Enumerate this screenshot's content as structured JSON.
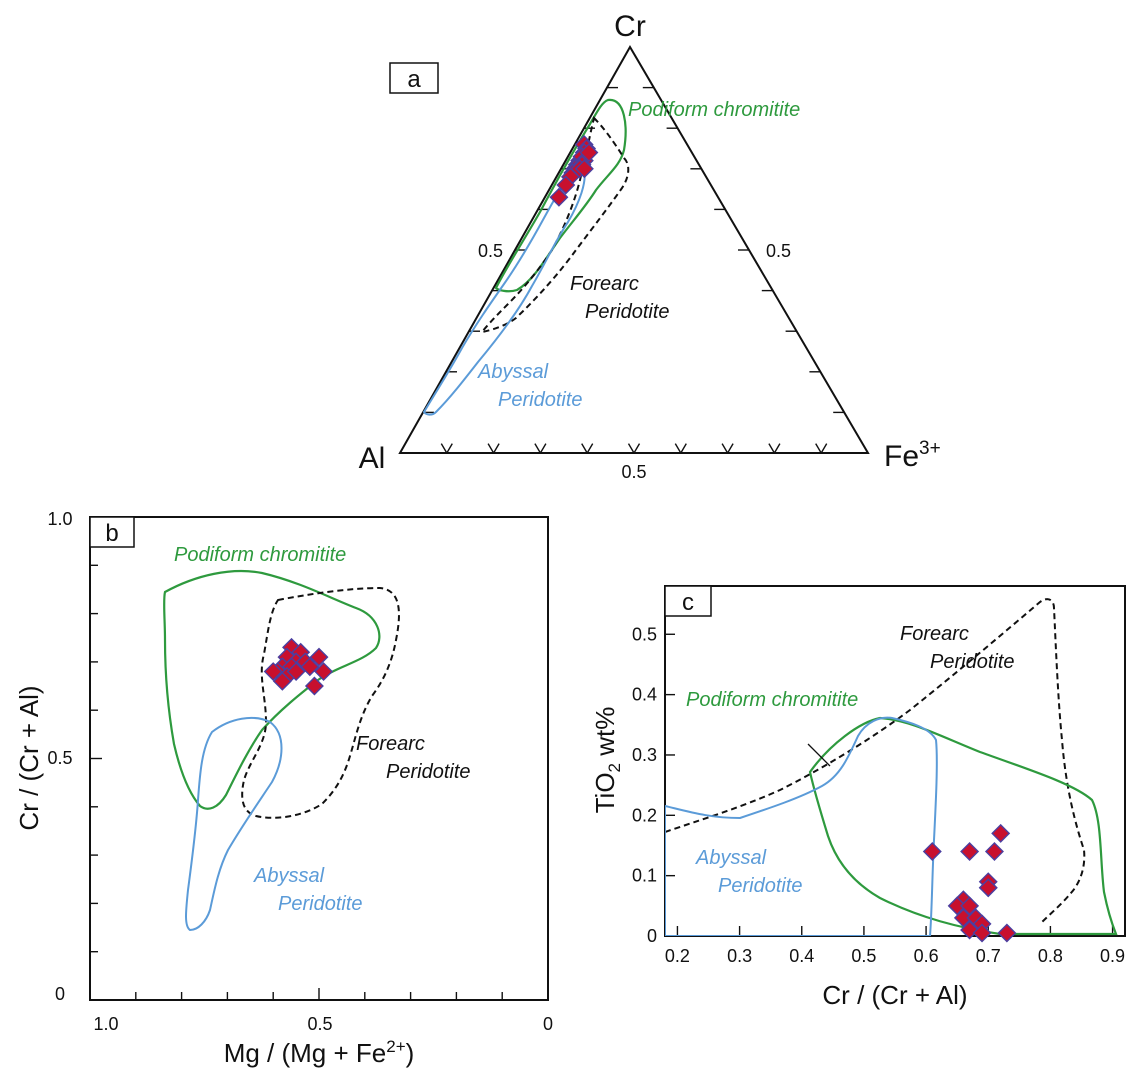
{
  "chart_data": [
    {
      "panel": "a",
      "type": "scatter",
      "subtype": "ternary",
      "vertices": {
        "top": "Cr",
        "left": "Al",
        "right_base": "Fe",
        "right_sup": "3+"
      },
      "tick_labels": {
        "left": "0.5",
        "right": "0.5",
        "bottom": "0.5"
      },
      "fields": [
        {
          "label": "Podiform chromitite",
          "color": "#2e9a3e",
          "dash": false
        },
        {
          "label_lines": [
            "Forearc",
            "Peridotite"
          ],
          "color": "#111111",
          "dash": true
        },
        {
          "label_lines": [
            "Abyssal",
            "Peridotite"
          ],
          "color": "#5b9bd8",
          "dash": false
        }
      ],
      "points_cr_al_fe3": [
        [
          0.76,
          0.22,
          0.02
        ],
        [
          0.75,
          0.22,
          0.03
        ],
        [
          0.74,
          0.23,
          0.03
        ],
        [
          0.72,
          0.25,
          0.03
        ],
        [
          0.71,
          0.26,
          0.03
        ],
        [
          0.7,
          0.27,
          0.03
        ],
        [
          0.69,
          0.28,
          0.03
        ],
        [
          0.73,
          0.24,
          0.03
        ],
        [
          0.72,
          0.24,
          0.04
        ],
        [
          0.71,
          0.25,
          0.04
        ],
        [
          0.7,
          0.26,
          0.04
        ],
        [
          0.68,
          0.29,
          0.03
        ],
        [
          0.66,
          0.31,
          0.03
        ],
        [
          0.63,
          0.34,
          0.03
        ],
        [
          0.74,
          0.22,
          0.04
        ],
        [
          0.7,
          0.25,
          0.05
        ]
      ]
    },
    {
      "panel": "b",
      "type": "scatter",
      "xlabel_base": "Mg / (Mg + Fe",
      "xlabel_sup": "2+",
      "xlabel_close": ")",
      "ylabel": "Cr / (Cr + Al)",
      "xlim": [
        1.0,
        0
      ],
      "ylim": [
        0,
        1.0
      ],
      "x_ticks": [
        "1.0",
        "0.5",
        "0"
      ],
      "y_ticks": [
        "0",
        "0.5",
        "1.0"
      ],
      "fields": [
        {
          "label": "Podiform chromitite",
          "color": "#2e9a3e",
          "dash": false
        },
        {
          "label_lines": [
            "Forearc",
            "Peridotite"
          ],
          "color": "#111111",
          "dash": true
        },
        {
          "label_lines": [
            "Abyssal",
            "Peridotite"
          ],
          "color": "#5b9bd8",
          "dash": false
        }
      ],
      "points": [
        [
          0.56,
          0.73
        ],
        [
          0.54,
          0.72
        ],
        [
          0.57,
          0.71
        ],
        [
          0.55,
          0.7
        ],
        [
          0.58,
          0.69
        ],
        [
          0.56,
          0.69
        ],
        [
          0.53,
          0.7
        ],
        [
          0.59,
          0.68
        ],
        [
          0.57,
          0.67
        ],
        [
          0.52,
          0.69
        ],
        [
          0.5,
          0.71
        ],
        [
          0.6,
          0.68
        ],
        [
          0.58,
          0.66
        ],
        [
          0.55,
          0.68
        ],
        [
          0.51,
          0.65
        ],
        [
          0.49,
          0.68
        ]
      ]
    },
    {
      "panel": "c",
      "type": "scatter",
      "xlabel": "Cr / (Cr + Al)",
      "ylabel_base": "TiO",
      "ylabel_sub": "2",
      "ylabel_rest": " wt%",
      "xlim": [
        0.18,
        0.92
      ],
      "ylim": [
        0,
        0.58
      ],
      "x_ticks": [
        "0.2",
        "0.3",
        "0.4",
        "0.5",
        "0.6",
        "0.7",
        "0.8",
        "0.9"
      ],
      "y_ticks": [
        "0",
        "0.1",
        "0.2",
        "0.3",
        "0.4",
        "0.5"
      ],
      "fields": [
        {
          "label": "Podiform chromitite",
          "color": "#2e9a3e",
          "dash": false
        },
        {
          "label_lines": [
            "Forearc",
            "Peridotite"
          ],
          "color": "#111111",
          "dash": true
        },
        {
          "label_lines": [
            "Abyssal",
            "Peridotite"
          ],
          "color": "#5b9bd8",
          "dash": false
        }
      ],
      "points": [
        [
          0.61,
          0.14
        ],
        [
          0.67,
          0.14
        ],
        [
          0.72,
          0.17
        ],
        [
          0.71,
          0.14
        ],
        [
          0.7,
          0.09
        ],
        [
          0.7,
          0.08
        ],
        [
          0.66,
          0.06
        ],
        [
          0.65,
          0.05
        ],
        [
          0.67,
          0.05
        ],
        [
          0.66,
          0.03
        ],
        [
          0.68,
          0.03
        ],
        [
          0.69,
          0.02
        ],
        [
          0.67,
          0.01
        ],
        [
          0.69,
          0.005
        ],
        [
          0.73,
          0.005
        ],
        [
          0.7,
          0.08
        ]
      ]
    }
  ]
}
